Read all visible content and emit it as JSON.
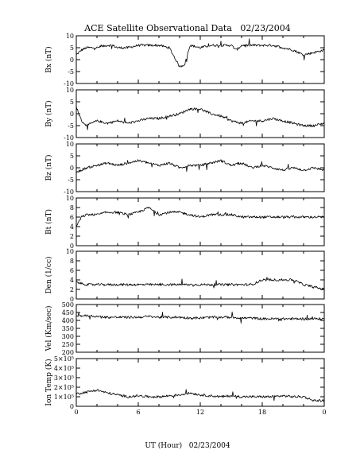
{
  "chart_data": {
    "type": "line",
    "title": "ACE Satellite Observational Data   02/23/2004",
    "xlabel": "UT (Hour)   02/23/2004",
    "x_ticks": [
      "0",
      "6",
      "12",
      "18",
      "0"
    ],
    "x_range_hours": [
      0,
      24
    ],
    "panels": [
      {
        "ylabel": "Bx (nT)",
        "ylim": [
          -10,
          10
        ],
        "yticks": [
          "-10",
          "-5",
          "0",
          "5",
          "10"
        ],
        "gap_hours": [],
        "x": [
          0,
          0.5,
          1,
          1.5,
          2,
          3,
          3.5,
          4,
          5,
          6,
          7,
          8,
          9,
          9.5,
          10,
          10.5,
          11,
          12,
          13,
          14,
          15,
          15.5,
          16,
          17,
          18,
          19,
          20,
          21,
          22,
          23,
          24
        ],
        "values": [
          2,
          4,
          5,
          5,
          5,
          6,
          6,
          5,
          5,
          6,
          6,
          6,
          5,
          1,
          -3,
          -2,
          6,
          5,
          6,
          6,
          6,
          4,
          6,
          6,
          6,
          6,
          5,
          4,
          2,
          3,
          4
        ]
      },
      {
        "ylabel": "By (nT)",
        "ylim": [
          -10,
          10
        ],
        "yticks": [
          "-10",
          "-5",
          "0",
          "5",
          "10"
        ],
        "gap_hours": [],
        "x": [
          0,
          0.5,
          1,
          2,
          3,
          4,
          5,
          6,
          7,
          8,
          9,
          10,
          11,
          12,
          13,
          14,
          15,
          16,
          17,
          18,
          19,
          20,
          21,
          22,
          23,
          24
        ],
        "values": [
          3,
          -3,
          -5,
          -3,
          -4,
          -3,
          -4,
          -3,
          -2,
          -2,
          -1,
          0,
          2,
          2,
          0,
          -1,
          -3,
          -4,
          -3,
          -3,
          -2,
          -3,
          -4,
          -5,
          -5,
          -4
        ]
      },
      {
        "ylabel": "Bz (nT)",
        "ylim": [
          -10,
          10
        ],
        "yticks": [
          "-10",
          "-5",
          "0",
          "5",
          "10"
        ],
        "gap_hours": [],
        "x": [
          0,
          1,
          2,
          3,
          4,
          5,
          6,
          7,
          8,
          9,
          10,
          11,
          12,
          13,
          14,
          15,
          16,
          17,
          18,
          19,
          20,
          21,
          22,
          23,
          24
        ],
        "values": [
          -2,
          0,
          1,
          2,
          1,
          2,
          3,
          2,
          1,
          2,
          0,
          1,
          1,
          2,
          3,
          1,
          2,
          0,
          1,
          0,
          -1,
          0,
          -1,
          0,
          -1
        ]
      },
      {
        "ylabel": "Bt (nT)",
        "ylim": [
          0,
          10
        ],
        "yticks": [
          "0",
          "2",
          "4",
          "6",
          "8",
          "10"
        ],
        "gap_hours": [],
        "x": [
          0,
          0.5,
          1,
          2,
          3,
          4,
          5,
          6,
          7,
          8,
          9,
          10,
          11,
          12,
          13,
          14,
          15,
          16,
          17,
          18,
          19,
          20,
          21,
          22,
          23,
          24
        ],
        "values": [
          4,
          6,
          6.5,
          6.5,
          7,
          7,
          6.5,
          7,
          8,
          6.5,
          7,
          7,
          6.5,
          6,
          6.5,
          6.5,
          6.5,
          6,
          6,
          6,
          6,
          6,
          6,
          6,
          6,
          6
        ]
      },
      {
        "ylabel": "Den (1/cc)",
        "ylim": [
          0,
          10
        ],
        "yticks": [
          "0",
          "2",
          "4",
          "6",
          "8",
          "10"
        ],
        "gap_hours": [],
        "x": [
          0,
          1,
          2,
          3,
          4,
          5,
          6,
          7,
          8,
          9,
          10,
          11,
          12,
          13,
          14,
          15,
          16,
          17,
          18,
          19,
          20,
          21,
          22,
          23,
          24
        ],
        "values": [
          3.5,
          3,
          3,
          3,
          3,
          3,
          3,
          3,
          3,
          3,
          3,
          3,
          3,
          3,
          3,
          3,
          3,
          3,
          4,
          4,
          4,
          4,
          3,
          2.5,
          2
        ]
      },
      {
        "ylabel": "Vel (Km/sec)",
        "ylim": [
          200,
          500
        ],
        "yticks": [
          "200",
          "250",
          "300",
          "350",
          "400",
          "450",
          "500"
        ],
        "gap_hours": [],
        "x": [
          0,
          1,
          2,
          3,
          4,
          5,
          6,
          7,
          8,
          9,
          10,
          11,
          12,
          13,
          14,
          15,
          16,
          17,
          18,
          19,
          20,
          21,
          22,
          23,
          24
        ],
        "values": [
          430,
          430,
          425,
          420,
          420,
          420,
          420,
          425,
          420,
          420,
          420,
          415,
          415,
          420,
          420,
          420,
          415,
          415,
          410,
          410,
          410,
          410,
          410,
          410,
          410
        ]
      },
      {
        "ylabel": "Ion Temp (K)",
        "ylim": [
          0,
          500000
        ],
        "yticks": [
          "0",
          "1×10⁵",
          "2×10⁵",
          "3×10⁵",
          "4×10⁵",
          "5×10⁵"
        ],
        "gap_hours": [],
        "x": [
          0,
          1,
          2,
          3,
          4,
          5,
          6,
          7,
          8,
          9,
          10,
          11,
          12,
          13,
          14,
          15,
          16,
          17,
          18,
          19,
          20,
          21,
          22,
          23,
          24
        ],
        "values": [
          130000,
          150000,
          170000,
          140000,
          120000,
          100000,
          110000,
          100000,
          100000,
          110000,
          120000,
          140000,
          120000,
          110000,
          100000,
          110000,
          100000,
          100000,
          100000,
          100000,
          110000,
          100000,
          100000,
          60000,
          60000
        ]
      }
    ]
  }
}
